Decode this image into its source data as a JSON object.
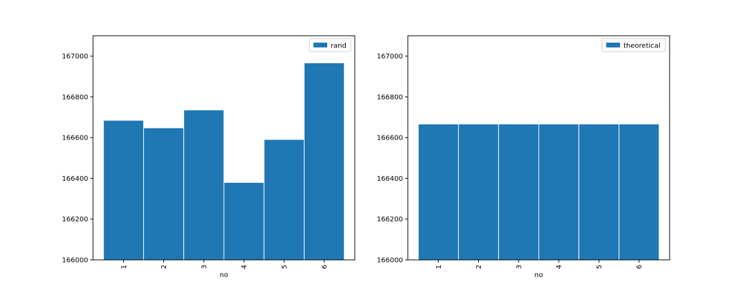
{
  "chart_data": [
    {
      "type": "bar",
      "categories": [
        "1",
        "2",
        "3",
        "4",
        "5",
        "6"
      ],
      "values": [
        166685,
        166648,
        166736,
        166380,
        166591,
        166967
      ],
      "xlabel": "no",
      "ylabel": "",
      "ylim": [
        166000,
        167100
      ],
      "yticks": [
        166000,
        166200,
        166400,
        166600,
        166800,
        167000
      ],
      "legend": {
        "label": "rand",
        "placement": "top-right"
      },
      "grid": false,
      "color": "#1f77b4"
    },
    {
      "type": "bar",
      "categories": [
        "1",
        "2",
        "3",
        "4",
        "5",
        "6"
      ],
      "values": [
        166667,
        166667,
        166667,
        166667,
        166667,
        166667
      ],
      "xlabel": "no",
      "ylabel": "",
      "ylim": [
        166000,
        167100
      ],
      "yticks": [
        166000,
        166200,
        166400,
        166600,
        166800,
        167000
      ],
      "legend": {
        "label": "theoretical",
        "placement": "top-right"
      },
      "grid": false,
      "color": "#1f77b4"
    }
  ]
}
